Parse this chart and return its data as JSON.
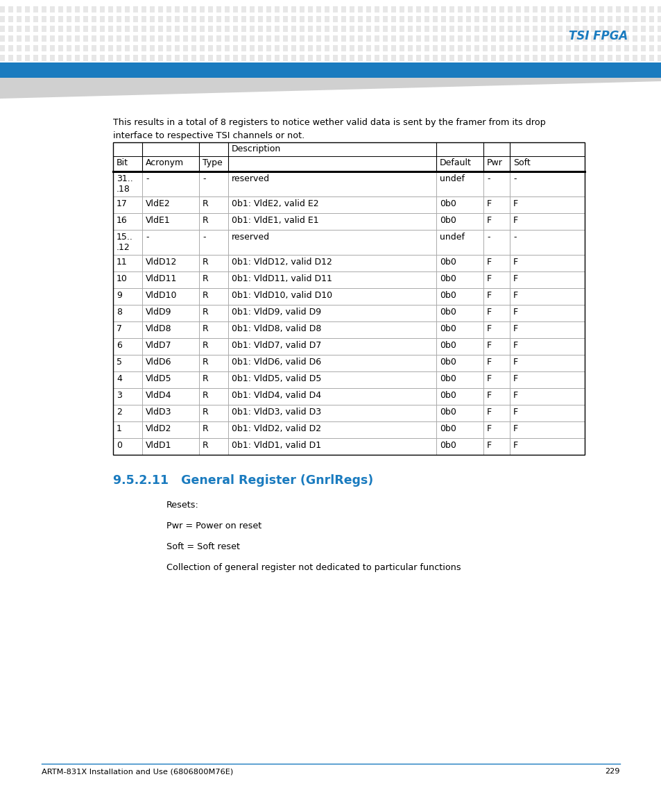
{
  "header_bg": "#1a7bbf",
  "page_bg": "#ffffff",
  "tsi_fpga_text": "TSI FPGA",
  "tsi_fpga_color": "#1a7bbf",
  "intro_text": "This results in a total of 8 registers to notice wether valid data is sent by the framer from its drop\ninterface to respective TSI channels or not.",
  "table_col_headers_row1": [
    "",
    "",
    "",
    "Description",
    "",
    "",
    ""
  ],
  "table_col_headers_row2": [
    "Bit",
    "Acronym",
    "Type",
    "",
    "Default",
    "Pwr",
    "Soft"
  ],
  "table_rows": [
    [
      "31..\n.18",
      "-",
      "-",
      "reserved",
      "undef",
      "-",
      "-"
    ],
    [
      "17",
      "VldE2",
      "R",
      "0b1: VldE2, valid E2",
      "0b0",
      "F",
      "F"
    ],
    [
      "16",
      "VldE1",
      "R",
      "0b1: VldE1, valid E1",
      "0b0",
      "F",
      "F"
    ],
    [
      "15..\n.12",
      "-",
      "-",
      "reserved",
      "undef",
      "-",
      "-"
    ],
    [
      "11",
      "VldD12",
      "R",
      "0b1: VldD12, valid D12",
      "0b0",
      "F",
      "F"
    ],
    [
      "10",
      "VldD11",
      "R",
      "0b1: VldD11, valid D11",
      "0b0",
      "F",
      "F"
    ],
    [
      "9",
      "VldD10",
      "R",
      "0b1: VldD10, valid D10",
      "0b0",
      "F",
      "F"
    ],
    [
      "8",
      "VldD9",
      "R",
      "0b1: VldD9, valid D9",
      "0b0",
      "F",
      "F"
    ],
    [
      "7",
      "VldD8",
      "R",
      "0b1: VldD8, valid D8",
      "0b0",
      "F",
      "F"
    ],
    [
      "6",
      "VldD7",
      "R",
      "0b1: VldD7, valid D7",
      "0b0",
      "F",
      "F"
    ],
    [
      "5",
      "VldD6",
      "R",
      "0b1: VldD6, valid D6",
      "0b0",
      "F",
      "F"
    ],
    [
      "4",
      "VldD5",
      "R",
      "0b1: VldD5, valid D5",
      "0b0",
      "F",
      "F"
    ],
    [
      "3",
      "VldD4",
      "R",
      "0b1: VldD4, valid D4",
      "0b0",
      "F",
      "F"
    ],
    [
      "2",
      "VldD3",
      "R",
      "0b1: VldD3, valid D3",
      "0b0",
      "F",
      "F"
    ],
    [
      "1",
      "VldD2",
      "R",
      "0b1: VldD2, valid D2",
      "0b0",
      "F",
      "F"
    ],
    [
      "0",
      "VldD1",
      "R",
      "0b1: VldD1, valid D1",
      "0b0",
      "F",
      "F"
    ]
  ],
  "section_title": "9.5.2.11   General Register (GnrlRegs)",
  "section_title_color": "#1a7bbf",
  "resets_text": "Resets:",
  "pwr_text": "Pwr = Power on reset",
  "soft_text": "Soft = Soft reset",
  "collection_text": "Collection of general register not dedicated to particular functions",
  "footer_text": "ARTM-831X Installation and Use (6806800M76E)",
  "page_number": "229",
  "footer_line_color": "#1a7bbf",
  "text_color": "#000000",
  "table_border_color": "#000000",
  "table_line_color": "#aaaaaa",
  "dot_color": "#d4d4d4",
  "gray_stripe_color": "#c8c8c8"
}
